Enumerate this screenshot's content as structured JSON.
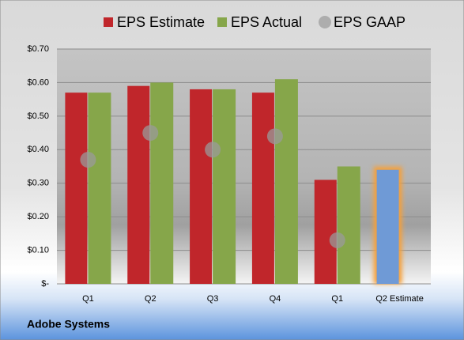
{
  "chart_data": {
    "type": "bar",
    "footer": "Adobe Systems",
    "categories": [
      "Q1",
      "Q2",
      "Q3",
      "Q4",
      "Q1",
      "Q2 Estimate"
    ],
    "series": [
      {
        "name": "EPS Estimate",
        "color": "#c0262b",
        "colors": [
          "#c0262b",
          "#c0262b",
          "#c0262b",
          "#c0262b",
          "#c0262b",
          "#6f9ad6"
        ],
        "values": [
          0.57,
          0.59,
          0.58,
          0.57,
          0.31,
          0.34
        ]
      },
      {
        "name": "EPS Actual",
        "color": "#86a64a",
        "values": [
          0.57,
          0.6,
          0.58,
          0.61,
          0.35,
          null
        ]
      },
      {
        "name": "EPS GAAP",
        "color": "#9a9a9a",
        "mark": "circle",
        "values": [
          0.37,
          0.45,
          0.4,
          0.44,
          0.13,
          null
        ]
      }
    ],
    "ylim": [
      0,
      0.7
    ],
    "yticks": [
      {
        "value": 0,
        "label": "$-"
      },
      {
        "value": 0.1,
        "label": "$0.10"
      },
      {
        "value": 0.2,
        "label": "$0.20"
      },
      {
        "value": 0.3,
        "label": "$0.30"
      },
      {
        "value": 0.4,
        "label": "$0.40"
      },
      {
        "value": 0.5,
        "label": "$0.50"
      },
      {
        "value": 0.6,
        "label": "$0.60"
      },
      {
        "value": 0.7,
        "label": "$0.70"
      }
    ],
    "grid": true,
    "legend": "top"
  }
}
